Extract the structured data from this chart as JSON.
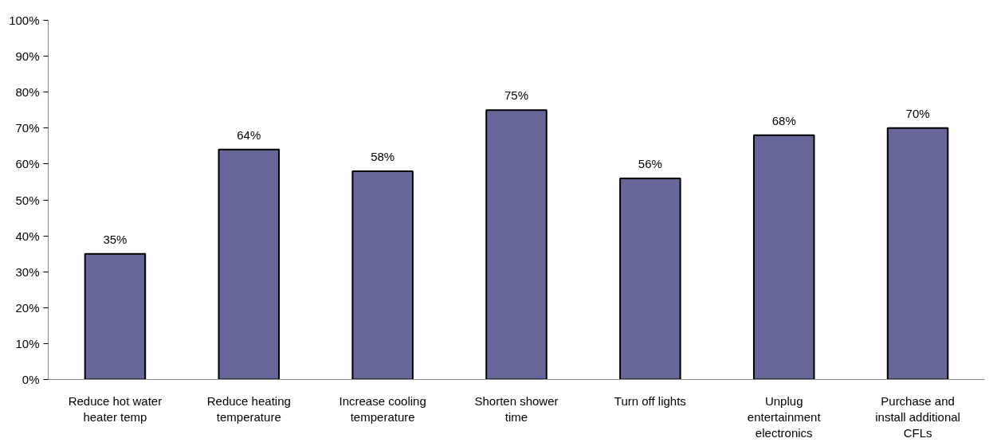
{
  "chart_data": {
    "type": "bar",
    "categories": [
      "Reduce hot water heater temp",
      "Reduce heating temperature",
      "Increase cooling temperature",
      "Shorten shower time",
      "Turn off lights",
      "Unplug entertainment electronics",
      "Purchase and install additional CFLs"
    ],
    "values": [
      35,
      64,
      58,
      75,
      56,
      68,
      70
    ],
    "value_labels": [
      "35%",
      "64%",
      "58%",
      "75%",
      "56%",
      "68%",
      "70%"
    ],
    "color": "#666699",
    "ylim": [
      0,
      100
    ],
    "yticks": [
      {
        "value": 0,
        "label": "0%"
      },
      {
        "value": 10,
        "label": "10%"
      },
      {
        "value": 20,
        "label": "20%"
      },
      {
        "value": 30,
        "label": "30%"
      },
      {
        "value": 40,
        "label": "40%"
      },
      {
        "value": 50,
        "label": "50%"
      },
      {
        "value": 60,
        "label": "60%"
      },
      {
        "value": 70,
        "label": "70%"
      },
      {
        "value": 80,
        "label": "80%"
      },
      {
        "value": 90,
        "label": "90%"
      },
      {
        "value": 100,
        "label": "100%"
      }
    ],
    "grid": false
  }
}
